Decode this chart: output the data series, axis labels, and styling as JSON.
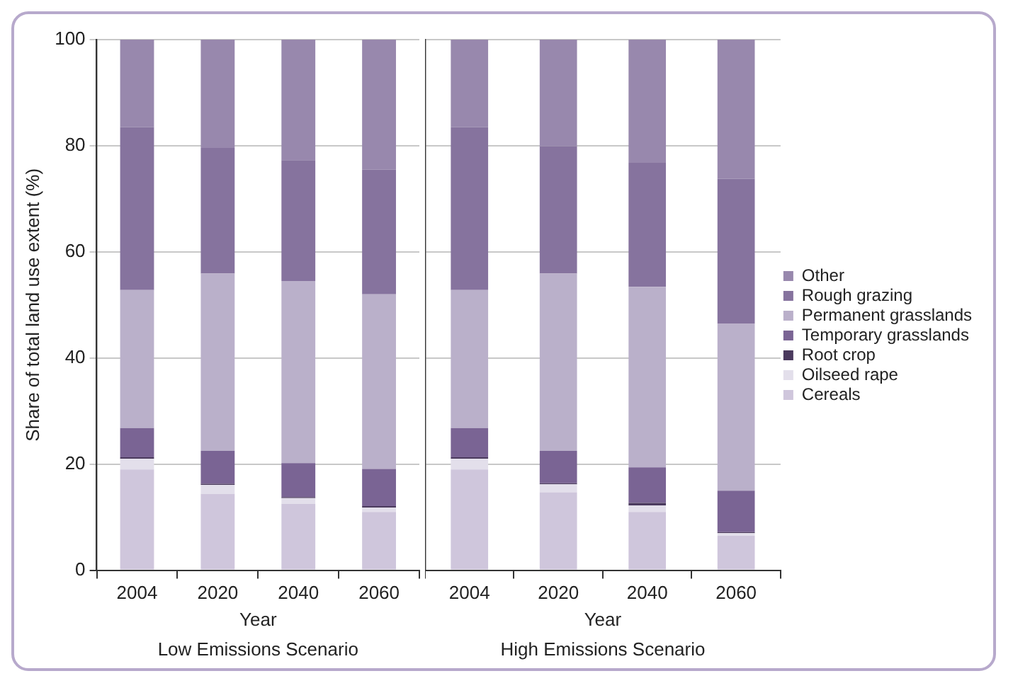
{
  "chart_data": [
    {
      "type": "bar",
      "stacked": true,
      "categories": [
        "2004",
        "2020",
        "2040",
        "2060"
      ],
      "xlabel": "Year",
      "ylabel": "Share of total land use extent (%)",
      "annotations": [
        "Low Emissions Scenario"
      ],
      "ylim": [
        0,
        100
      ],
      "yticks": [
        0,
        20,
        40,
        60,
        80,
        100
      ],
      "grid": "y",
      "legend": false,
      "series": [
        {
          "color": "#cfc6dc",
          "values": [
            19,
            14.4,
            12.5,
            11
          ]
        },
        {
          "color": "#e3dfeb",
          "values": [
            2,
            1.7,
            1.1,
            0.8
          ]
        },
        {
          "color": "#4b3a5e",
          "values": [
            0.3,
            0.2,
            0.2,
            0.3
          ]
        },
        {
          "color": "#7a6494",
          "values": [
            5.5,
            6.2,
            6.4,
            7
          ]
        },
        {
          "color": "#bab0ca",
          "values": [
            26,
            33.4,
            34.3,
            32.9
          ]
        },
        {
          "color": "#86739e",
          "values": [
            30.7,
            23.7,
            22.8,
            23.5
          ]
        },
        {
          "color": "#9888ad",
          "values": [
            16.5,
            20.4,
            22.7,
            24.5
          ]
        }
      ]
    },
    {
      "type": "bar",
      "stacked": true,
      "categories": [
        "2004",
        "2020",
        "2040",
        "2060"
      ],
      "xlabel": "Year",
      "annotations": [
        "High Emissions Scenario"
      ],
      "ylim": [
        0,
        100
      ],
      "yticks": [
        0,
        20,
        40,
        60,
        80,
        100
      ],
      "grid": "y",
      "legend": "right",
      "tick_labels": "x",
      "series": [
        {
          "name": "Cereals",
          "color": "#cfc6dc",
          "values": [
            19,
            14.7,
            11,
            6.5
          ]
        },
        {
          "name": "Oilseed rape",
          "color": "#e3dfeb",
          "values": [
            2,
            1.5,
            1.2,
            0.5
          ]
        },
        {
          "name": "Root crop",
          "color": "#4b3a5e",
          "values": [
            0.3,
            0.2,
            0.5,
            0.2
          ]
        },
        {
          "name": "Temporary grasslands",
          "color": "#7a6494",
          "values": [
            5.5,
            6.1,
            6.7,
            7.8
          ]
        },
        {
          "name": "Permanent grasslands",
          "color": "#bab0ca",
          "values": [
            26,
            33.4,
            34,
            31.5
          ]
        },
        {
          "name": "Rough grazing",
          "color": "#86739e",
          "values": [
            30.7,
            24,
            23.4,
            27.3
          ]
        },
        {
          "name": "Other",
          "color": "#9888ad",
          "values": [
            16.5,
            20.1,
            23.2,
            26.4
          ]
        }
      ]
    }
  ]
}
